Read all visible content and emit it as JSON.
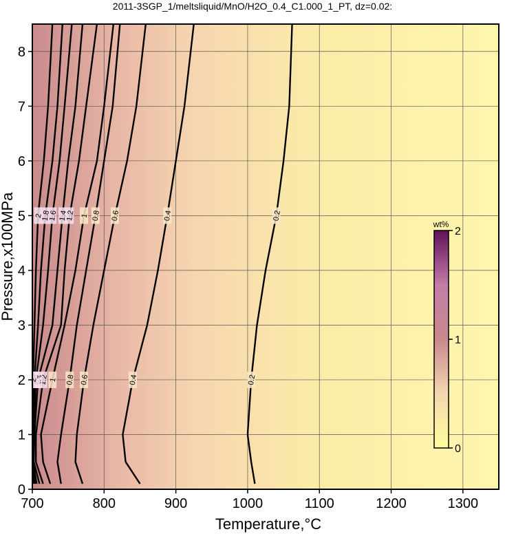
{
  "chart_data": {
    "type": "contour",
    "title": "2011-3SGP_1/meltsliquid/MnO/H2O_0.4_C1.000_1_PT, dz=0.02:",
    "x_label": "Temperature,°C",
    "y_label": "Pressure,x100MPa",
    "xlim": [
      700,
      1350
    ],
    "ylim": [
      0,
      8.5
    ],
    "xticks": [
      700,
      800,
      900,
      1000,
      1100,
      1200,
      1300
    ],
    "yticks": [
      0,
      1,
      2,
      3,
      4,
      5,
      6,
      7,
      8
    ],
    "grid": true,
    "colorbar": {
      "label": "wt%",
      "lim": [
        0,
        2
      ],
      "ticks": [
        0,
        1,
        2
      ]
    },
    "contours": [
      {
        "level": 0.2,
        "y": [
          0.1,
          0.5,
          1,
          2,
          3,
          4,
          5,
          6,
          7,
          8.5
        ],
        "x": [
          1010,
          1005,
          1000,
          1005,
          1013,
          1025,
          1040,
          1050,
          1058,
          1062
        ]
      },
      {
        "level": 0.4,
        "y": [
          0.1,
          0.5,
          1,
          2,
          3,
          4,
          5,
          6,
          7,
          8.5
        ],
        "x": [
          850,
          830,
          826,
          840,
          860,
          875,
          888,
          900,
          912,
          925
        ]
      },
      {
        "level": 0.6,
        "y": [
          0.1,
          0.5,
          1,
          2,
          3,
          4,
          5,
          6,
          7,
          8.5
        ],
        "x": [
          770,
          760,
          762,
          772,
          785,
          800,
          815,
          832,
          845,
          858
        ]
      },
      {
        "level": 0.8,
        "y": [
          0.1,
          0.5,
          1,
          2,
          3,
          4,
          5,
          6,
          7,
          8.5
        ],
        "x": [
          740,
          735,
          740,
          752,
          762,
          775,
          788,
          800,
          812,
          822
        ]
      },
      {
        "level": 1,
        "y": [
          0.1,
          0.5,
          1,
          2,
          3,
          4,
          5,
          6,
          7,
          8.5
        ],
        "x": [
          725,
          715,
          712,
          728,
          745,
          760,
          772,
          790,
          800,
          813
        ]
      },
      {
        "level": 1.2,
        "y": [
          0.1,
          0.5,
          1,
          2,
          3,
          4,
          5,
          6,
          7,
          8.5
        ],
        "x": [
          715,
          705,
          705,
          715,
          740,
          745,
          752,
          765,
          775,
          790
        ]
      },
      {
        "level": 1.4,
        "y": [
          0.1,
          0.5,
          1,
          2,
          3,
          4,
          5,
          6,
          7,
          8.5
        ],
        "x": [
          710,
          702,
          703,
          708,
          728,
          735,
          742,
          750,
          760,
          770
        ]
      },
      {
        "level": 1.6,
        "y": [
          0.1,
          0.5,
          1,
          2,
          3,
          4,
          5,
          6,
          7,
          8.5
        ],
        "x": [
          706,
          701,
          702,
          705,
          715,
          722,
          728,
          738,
          745,
          755
        ]
      },
      {
        "level": 1.8,
        "y": [
          0.1,
          0.5,
          1,
          2,
          3,
          4,
          5,
          6,
          7,
          8.5
        ],
        "x": [
          704,
          700,
          701,
          703,
          708,
          712,
          718,
          728,
          735,
          742
        ]
      },
      {
        "level": 2,
        "y": [
          0.1,
          0.5,
          1,
          2,
          3,
          4,
          5,
          6,
          7,
          8.5
        ],
        "x": [
          702,
          700,
          700,
          701,
          703,
          705,
          708,
          716,
          722,
          728
        ]
      }
    ]
  }
}
